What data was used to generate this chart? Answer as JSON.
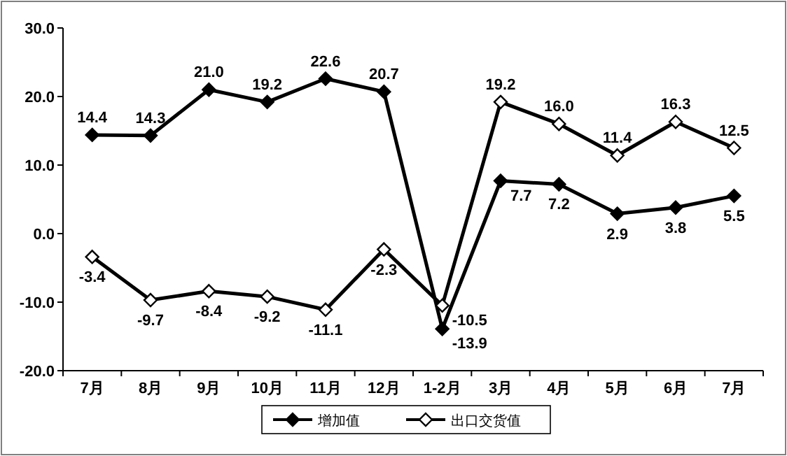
{
  "chart_data": {
    "type": "line",
    "categories": [
      "7月",
      "8月",
      "9月",
      "10月",
      "11月",
      "12月",
      "1-2月",
      "3月",
      "4月",
      "5月",
      "6月",
      "7月"
    ],
    "series": [
      {
        "name": "增加值",
        "color": "#000000",
        "values": [
          14.4,
          14.3,
          21.0,
          19.2,
          22.6,
          20.7,
          -13.9,
          7.7,
          7.2,
          2.9,
          3.8,
          5.5
        ],
        "value_labels": [
          "14.4",
          "14.3",
          "21.0",
          "19.2",
          "22.6",
          "20.7",
          "-13.9",
          "7.7",
          "7.2",
          "2.9",
          "3.8",
          "5.5"
        ]
      },
      {
        "name": "出口交货值",
        "color": "#000000",
        "values": [
          -3.4,
          -9.7,
          -8.4,
          -9.2,
          -11.1,
          -2.3,
          -10.5,
          19.2,
          16.0,
          11.4,
          16.3,
          12.5
        ],
        "value_labels": [
          "-3.4",
          "-9.7",
          "-8.4",
          "-9.2",
          "-11.1",
          "-2.3",
          "-10.5",
          "19.2",
          "16.0",
          "11.4",
          "16.3",
          "12.5"
        ]
      }
    ],
    "ylim": [
      -20,
      30
    ],
    "yticks": [
      {
        "value": -20,
        "label": "-20.0"
      },
      {
        "value": -10,
        "label": "-10.0"
      },
      {
        "value": 0,
        "label": "0.0"
      },
      {
        "value": 10,
        "label": "10.0"
      },
      {
        "value": 20,
        "label": "20.0"
      },
      {
        "value": 30,
        "label": "30.0"
      }
    ],
    "marker": "diamond",
    "line_style": "solid",
    "grid": false,
    "legend": "bottom"
  }
}
